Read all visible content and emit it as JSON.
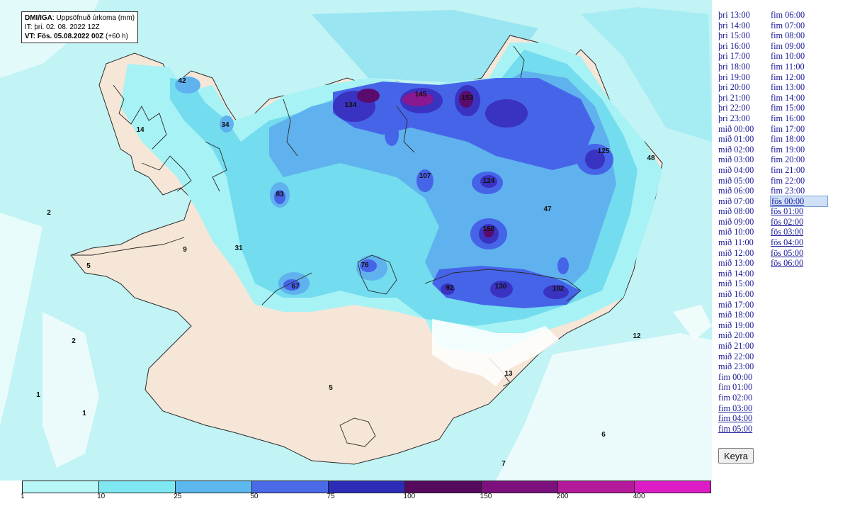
{
  "header": {
    "source": "DMI/IGA",
    "variable": "Uppsöfnuð úrkoma (mm)",
    "issue_time": "IT: þri. 02. 08. 2022 12Z",
    "valid_time": "VT: Fös. 05.08.2022 00Z",
    "lead": "(+60 h)"
  },
  "map": {
    "colors": {
      "sea": "#c2f3f5",
      "land": "#f6e6d8",
      "c1": "#a7f2f4",
      "c10": "#73dcee",
      "c25": "#5fb2ee",
      "c50": "#4664e8",
      "c75": "#3a32c0",
      "c100": "#5a0c6e",
      "c150": "#8a1890",
      "coast": "#2a2a2a"
    },
    "values": [
      "42",
      "14",
      "34",
      "134",
      "145",
      "153",
      "83",
      "107",
      "124",
      "125",
      "48",
      "47",
      "2",
      "9",
      "31",
      "158",
      "5",
      "76",
      "67",
      "92",
      "130",
      "102",
      "12",
      "2",
      "1",
      "1",
      "13",
      "5",
      "6",
      "7"
    ]
  },
  "times": {
    "left": [
      "þri 13:00",
      "þri 14:00",
      "þri 15:00",
      "þri 16:00",
      "þri 17:00",
      "þri 18:00",
      "þri 19:00",
      "þri 20:00",
      "þri 21:00",
      "þri 22:00",
      "þri 23:00",
      "mið 00:00",
      "mið 01:00",
      "mið 02:00",
      "mið 03:00",
      "mið 04:00",
      "mið 05:00",
      "mið 06:00",
      "mið 07:00",
      "mið 08:00",
      "mið 09:00",
      "mið 10:00",
      "mið 11:00",
      "mið 12:00",
      "mið 13:00",
      "mið 14:00",
      "mið 15:00",
      "mið 16:00",
      "mið 17:00",
      "mið 18:00",
      "mið 19:00",
      "mið 20:00",
      "mið 21:00",
      "mið 22:00",
      "mið 23:00",
      "fim 00:00",
      "fim 01:00",
      "fim 02:00",
      "fim 03:00",
      "fim 04:00",
      "fim 05:00"
    ],
    "right": [
      "fim 06:00",
      "fim 07:00",
      "fim 08:00",
      "fim 09:00",
      "fim 10:00",
      "fim 11:00",
      "fim 12:00",
      "fim 13:00",
      "fim 14:00",
      "fim 15:00",
      "fim 16:00",
      "fim 17:00",
      "fim 18:00",
      "fim 19:00",
      "fim 20:00",
      "fim 21:00",
      "fim 22:00",
      "fim 23:00",
      "fös 00:00",
      "fös 01:00",
      "fös 02:00",
      "fös 03:00",
      "fös 04:00",
      "fös 05:00",
      "fös 06:00"
    ],
    "selected": "fös 00:00",
    "run_button": "Keyra"
  },
  "legend": {
    "thresholds": [
      "1",
      "10",
      "25",
      "50",
      "75",
      "100",
      "150",
      "200",
      "400"
    ],
    "colors": [
      "#b8f6f8",
      "#7fe8f2",
      "#5cb8ee",
      "#4a6ae8",
      "#2c2cb8",
      "#560a5e",
      "#7c107c",
      "#b41a9a",
      "#de1cc6"
    ]
  }
}
